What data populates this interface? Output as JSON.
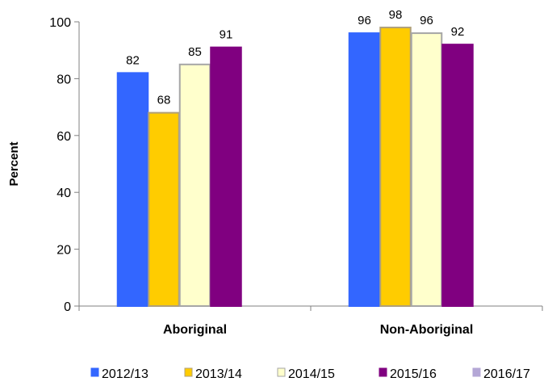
{
  "chart_data": {
    "type": "bar",
    "title": "",
    "xlabel": "",
    "ylabel": "Percent",
    "ylim": [
      0,
      100
    ],
    "yticks": [
      0,
      20,
      40,
      60,
      80,
      100
    ],
    "categories": [
      "Aboriginal",
      "Non-Aboriginal"
    ],
    "series": [
      {
        "name": "2012/13",
        "color": "#3366ff",
        "border": "#3366ff",
        "values": [
          82,
          96
        ]
      },
      {
        "name": "2013/14",
        "color": "#ffcc00",
        "border": "#b0a07a",
        "values": [
          68,
          98
        ]
      },
      {
        "name": "2014/15",
        "color": "#ffffcc",
        "border": "#a6a6a6",
        "values": [
          85,
          96
        ]
      },
      {
        "name": "2015/16",
        "color": "#800080",
        "border": "#800080",
        "values": [
          91,
          92
        ]
      },
      {
        "name": "2016/17",
        "color": "#b4a7d6",
        "border": "#b4a7d6",
        "values": [
          null,
          null
        ]
      }
    ],
    "grid": false,
    "legend_position": "bottom"
  }
}
